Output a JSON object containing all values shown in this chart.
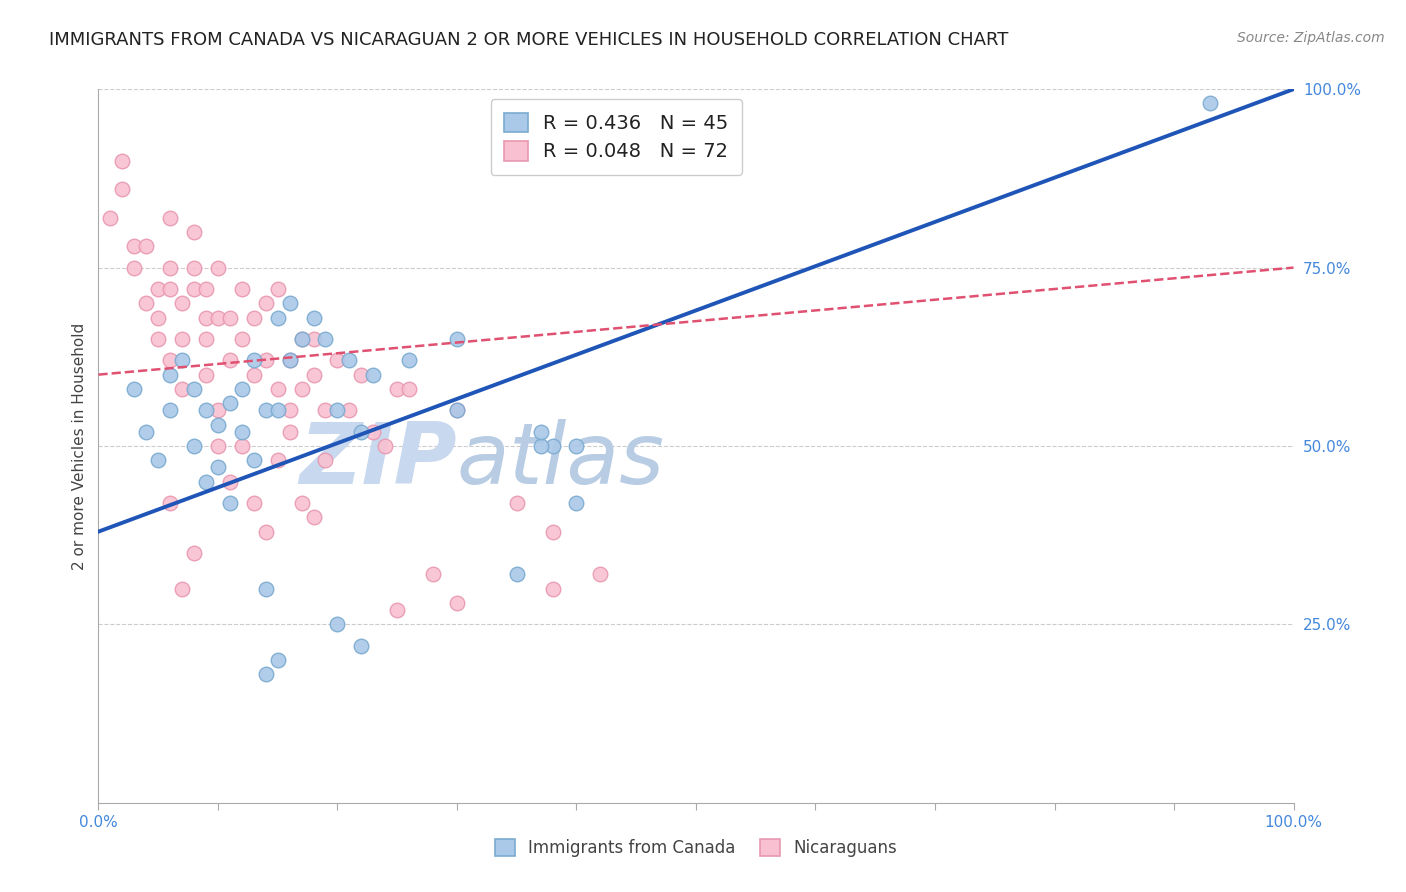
{
  "title": "IMMIGRANTS FROM CANADA VS NICARAGUAN 2 OR MORE VEHICLES IN HOUSEHOLD CORRELATION CHART",
  "source": "Source: ZipAtlas.com",
  "ylabel": "2 or more Vehicles in Household",
  "watermark": "ZIPatlas",
  "xlim": [
    0,
    100
  ],
  "ylim": [
    0,
    100
  ],
  "xticks": [
    0,
    10,
    20,
    30,
    40,
    50,
    60,
    70,
    80,
    90,
    100
  ],
  "xticklabels_major": {
    "0": "0.0%",
    "100": "100.0%"
  },
  "yticks": [
    25,
    50,
    75,
    100
  ],
  "yticklabels": [
    "25.0%",
    "50.0%",
    "75.0%",
    "100.0%"
  ],
  "legend_line1": "R = 0.436   N = 45",
  "legend_line2": "R = 0.048   N = 72",
  "blue_scatter_x": [
    3,
    4,
    5,
    6,
    6,
    7,
    8,
    8,
    9,
    9,
    10,
    10,
    11,
    11,
    12,
    12,
    13,
    13,
    14,
    14,
    15,
    15,
    16,
    16,
    17,
    18,
    19,
    20,
    21,
    22,
    23,
    26,
    30,
    30,
    15,
    35,
    20,
    22,
    40,
    38,
    14,
    37,
    37,
    40,
    93
  ],
  "blue_scatter_y": [
    58,
    52,
    48,
    60,
    55,
    62,
    58,
    50,
    55,
    45,
    53,
    47,
    56,
    42,
    58,
    52,
    48,
    62,
    30,
    55,
    68,
    55,
    70,
    62,
    65,
    68,
    65,
    55,
    62,
    52,
    60,
    62,
    65,
    55,
    20,
    32,
    25,
    22,
    50,
    50,
    18,
    50,
    52,
    42,
    98
  ],
  "pink_scatter_x": [
    1,
    2,
    2,
    3,
    3,
    4,
    4,
    5,
    5,
    6,
    6,
    7,
    7,
    8,
    8,
    9,
    9,
    9,
    10,
    10,
    11,
    11,
    12,
    12,
    13,
    13,
    14,
    14,
    15,
    15,
    16,
    16,
    17,
    17,
    18,
    18,
    19,
    20,
    21,
    22,
    23,
    24,
    25,
    5,
    6,
    6,
    7,
    8,
    9,
    10,
    10,
    11,
    12,
    13,
    14,
    15,
    16,
    17,
    18,
    19,
    26,
    30,
    35,
    38,
    28,
    25,
    8,
    6,
    7,
    30,
    38,
    42
  ],
  "pink_scatter_y": [
    82,
    86,
    90,
    75,
    78,
    70,
    78,
    72,
    65,
    82,
    75,
    70,
    65,
    80,
    72,
    68,
    60,
    72,
    75,
    68,
    62,
    68,
    65,
    72,
    60,
    68,
    70,
    62,
    72,
    58,
    62,
    55,
    58,
    65,
    60,
    65,
    55,
    62,
    55,
    60,
    52,
    50,
    58,
    68,
    72,
    62,
    58,
    75,
    65,
    55,
    50,
    45,
    50,
    42,
    38,
    48,
    52,
    42,
    40,
    48,
    58,
    55,
    42,
    38,
    32,
    27,
    35,
    42,
    30,
    28,
    30,
    32
  ],
  "blue_line_x": [
    0,
    100
  ],
  "blue_line_y": [
    38,
    100
  ],
  "pink_line_x": [
    0,
    100
  ],
  "pink_line_y": [
    60,
    75
  ],
  "title_fontsize": 13,
  "axis_label_fontsize": 11,
  "tick_fontsize": 11,
  "legend_fontsize": 14,
  "watermark_fontsize": 62,
  "scatter_size": 110,
  "blue_scatter_color": "#aac8e8",
  "blue_scatter_edge": "#7aaad0",
  "pink_scatter_color": "#f8c0d0",
  "pink_scatter_edge": "#e898b0",
  "blue_line_color": "#2055b8",
  "pink_line_color": "#e05070",
  "background_color": "#ffffff",
  "grid_color": "#cccccc",
  "title_color": "#222222",
  "source_color": "#888888",
  "tick_color": "#4488dd",
  "watermark_color": "#c8d8ee",
  "legend_box_color_blue": "#aac8e8",
  "legend_box_edge_blue": "#7aaad0",
  "legend_box_color_pink": "#f8c0d0",
  "legend_box_edge_pink": "#e898b0"
}
